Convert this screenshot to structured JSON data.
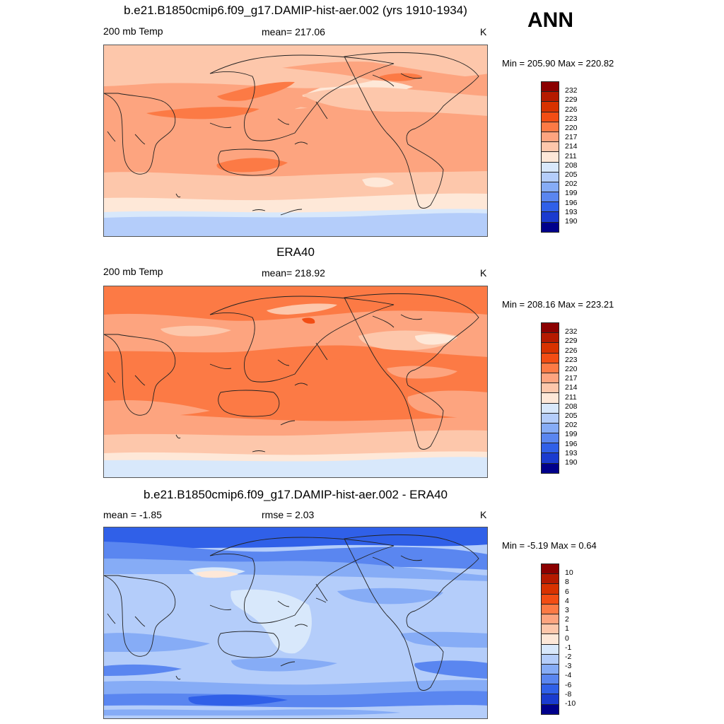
{
  "season": "ANN",
  "panels": [
    {
      "title": "b.e21.B1850cmip6.f09_g17.DAMIP-hist-aer.002 (yrs 1910-1934)",
      "left_label": "200 mb Temp",
      "center_label": "mean= 217.06",
      "units": "K",
      "minmax": "Min = 205.90 Max = 220.82",
      "palette": "abs"
    },
    {
      "title": "ERA40",
      "left_label": "200 mb Temp",
      "center_label": "mean= 218.92",
      "units": "K",
      "minmax": "Min = 208.16 Max = 223.21",
      "palette": "abs"
    },
    {
      "title": "b.e21.B1850cmip6.f09_g17.DAMIP-hist-aer.002 - ERA40",
      "left_label": "mean =  -1.85",
      "center_label": "rmse =   2.03",
      "units": "K",
      "minmax": "Min =  -5.19 Max =   0.64",
      "palette": "diff"
    }
  ],
  "colorbars": {
    "abs_labels": [
      "232",
      "229",
      "226",
      "223",
      "220",
      "217",
      "214",
      "211",
      "208",
      "205",
      "202",
      "199",
      "196",
      "193",
      "190"
    ],
    "diff_labels": [
      "10",
      "8",
      "6",
      "4",
      "3",
      "2",
      "1",
      "0",
      "-1",
      "-2",
      "-3",
      "-4",
      "-6",
      "-8",
      "-10"
    ],
    "colors": [
      "#8b0000",
      "#b51a00",
      "#d83200",
      "#f24d14",
      "#fc7a45",
      "#fda47f",
      "#fdc7ab",
      "#fee8d8",
      "#d8e8fb",
      "#b4cdfa",
      "#86acf6",
      "#5a86f0",
      "#3060e8",
      "#1a3bcf",
      "#00008b"
    ]
  }
}
